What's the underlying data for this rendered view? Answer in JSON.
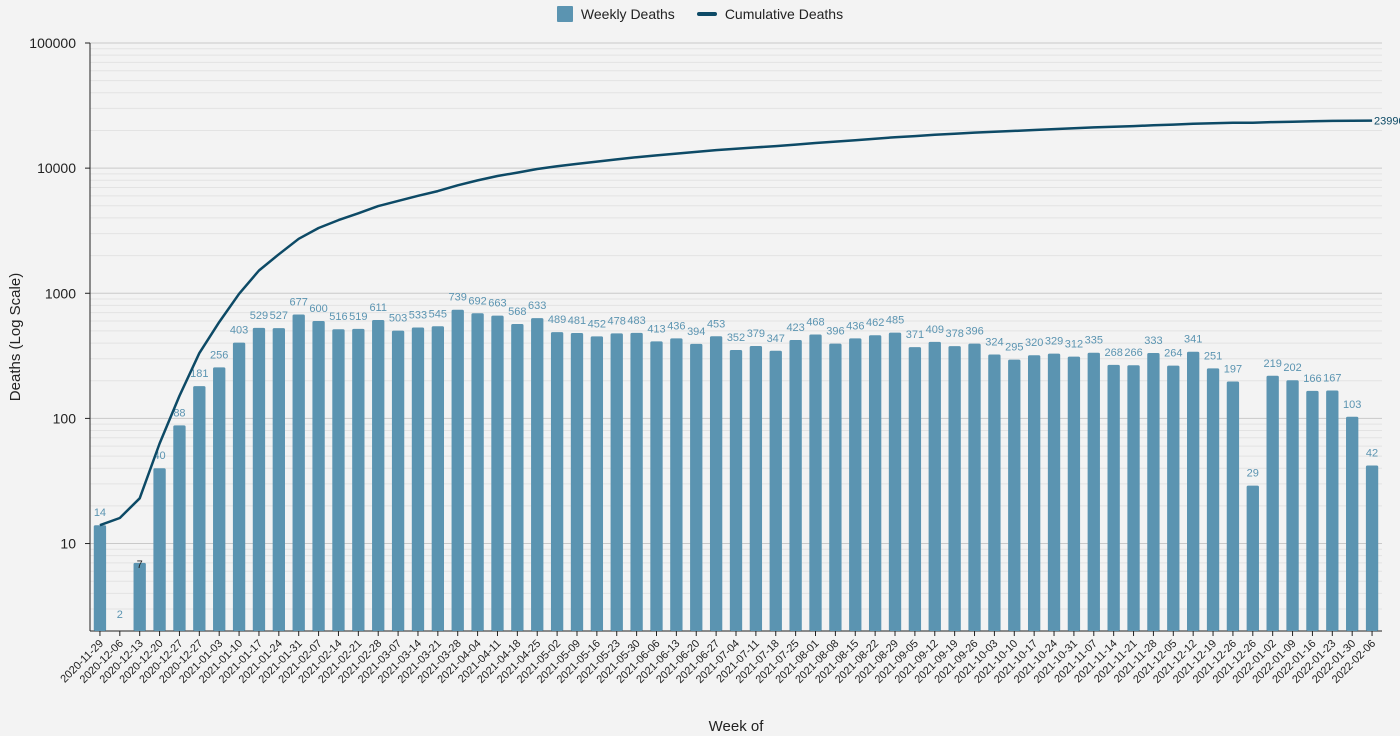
{
  "chart_data": {
    "type": "bar",
    "title": "",
    "xlabel": "Week of",
    "ylabel": "Deaths (Log Scale)",
    "yscale": "log",
    "ylim": [
      2,
      100000
    ],
    "yticks": [
      10,
      100,
      1000,
      10000,
      100000
    ],
    "yticks_labels": [
      "10",
      "100",
      "1000",
      "10000",
      "100000"
    ],
    "grid": true,
    "legend_position": "top-center",
    "categories": [
      "2020-11-29",
      "2020-12-06",
      "2020-12-13",
      "2020-12-20",
      "2020-12-27",
      "2020-12-27",
      "2021-01-03",
      "2021-01-10",
      "2021-01-17",
      "2021-01-24",
      "2021-01-31",
      "2021-02-07",
      "2021-02-14",
      "2021-02-21",
      "2021-02-28",
      "2021-03-07",
      "2021-03-14",
      "2021-03-21",
      "2021-03-28",
      "2021-04-04",
      "2021-04-11",
      "2021-04-18",
      "2021-04-25",
      "2021-05-02",
      "2021-05-09",
      "2021-05-16",
      "2021-05-23",
      "2021-05-30",
      "2021-06-06",
      "2021-06-13",
      "2021-06-20",
      "2021-06-27",
      "2021-07-04",
      "2021-07-11",
      "2021-07-18",
      "2021-07-25",
      "2021-08-01",
      "2021-08-08",
      "2021-08-15",
      "2021-08-22",
      "2021-08-29",
      "2021-09-05",
      "2021-09-12",
      "2021-09-19",
      "2021-09-26",
      "2021-10-03",
      "2021-10-10",
      "2021-10-17",
      "2021-10-24",
      "2021-10-31",
      "2021-11-07",
      "2021-11-14",
      "2021-11-21",
      "2021-11-28",
      "2021-12-05",
      "2021-12-12",
      "2021-12-19",
      "2021-12-26",
      "2021-12-26",
      "2022-01-02",
      "2022-01-09",
      "2022-01-16",
      "2022-01-23",
      "2022-01-30",
      "2022-02-06"
    ],
    "series": [
      {
        "name": "Weekly Deaths",
        "kind": "bar",
        "color": "#5b94b1",
        "values": [
          14,
          2,
          7,
          40,
          88,
          181,
          256,
          403,
          529,
          527,
          677,
          600,
          516,
          519,
          611,
          503,
          533,
          545,
          739,
          692,
          663,
          568,
          633,
          489,
          481,
          452,
          478,
          483,
          413,
          436,
          394,
          453,
          352,
          379,
          347,
          423,
          468,
          396,
          436,
          462,
          485,
          371,
          409,
          378,
          396,
          324,
          295,
          320,
          329,
          312,
          335,
          268,
          266,
          333,
          264,
          341,
          251,
          197,
          29,
          219,
          202,
          166,
          167,
          103,
          42
        ]
      },
      {
        "name": "Cumulative Deaths",
        "kind": "line",
        "color": "#0d4a66",
        "values": [
          14,
          16,
          23,
          63,
          151,
          332,
          588,
          991,
          1520,
          2047,
          2724,
          3324,
          3840,
          4359,
          4970,
          5473,
          6006,
          6551,
          7290,
          7982,
          8645,
          9213,
          9846,
          10335,
          10816,
          11268,
          11746,
          12229,
          12642,
          13078,
          13472,
          13925,
          14277,
          14656,
          15003,
          15426,
          15894,
          16290,
          16726,
          17188,
          17673,
          18044,
          18453,
          18831,
          19227,
          19551,
          19846,
          20166,
          20495,
          20807,
          21142,
          21410,
          21676,
          22009,
          22273,
          22614,
          22865,
          23062,
          23091,
          23310,
          23512,
          23678,
          23845,
          23948,
          23990
        ]
      }
    ],
    "annotations": {
      "line_end_label": "23990"
    }
  }
}
